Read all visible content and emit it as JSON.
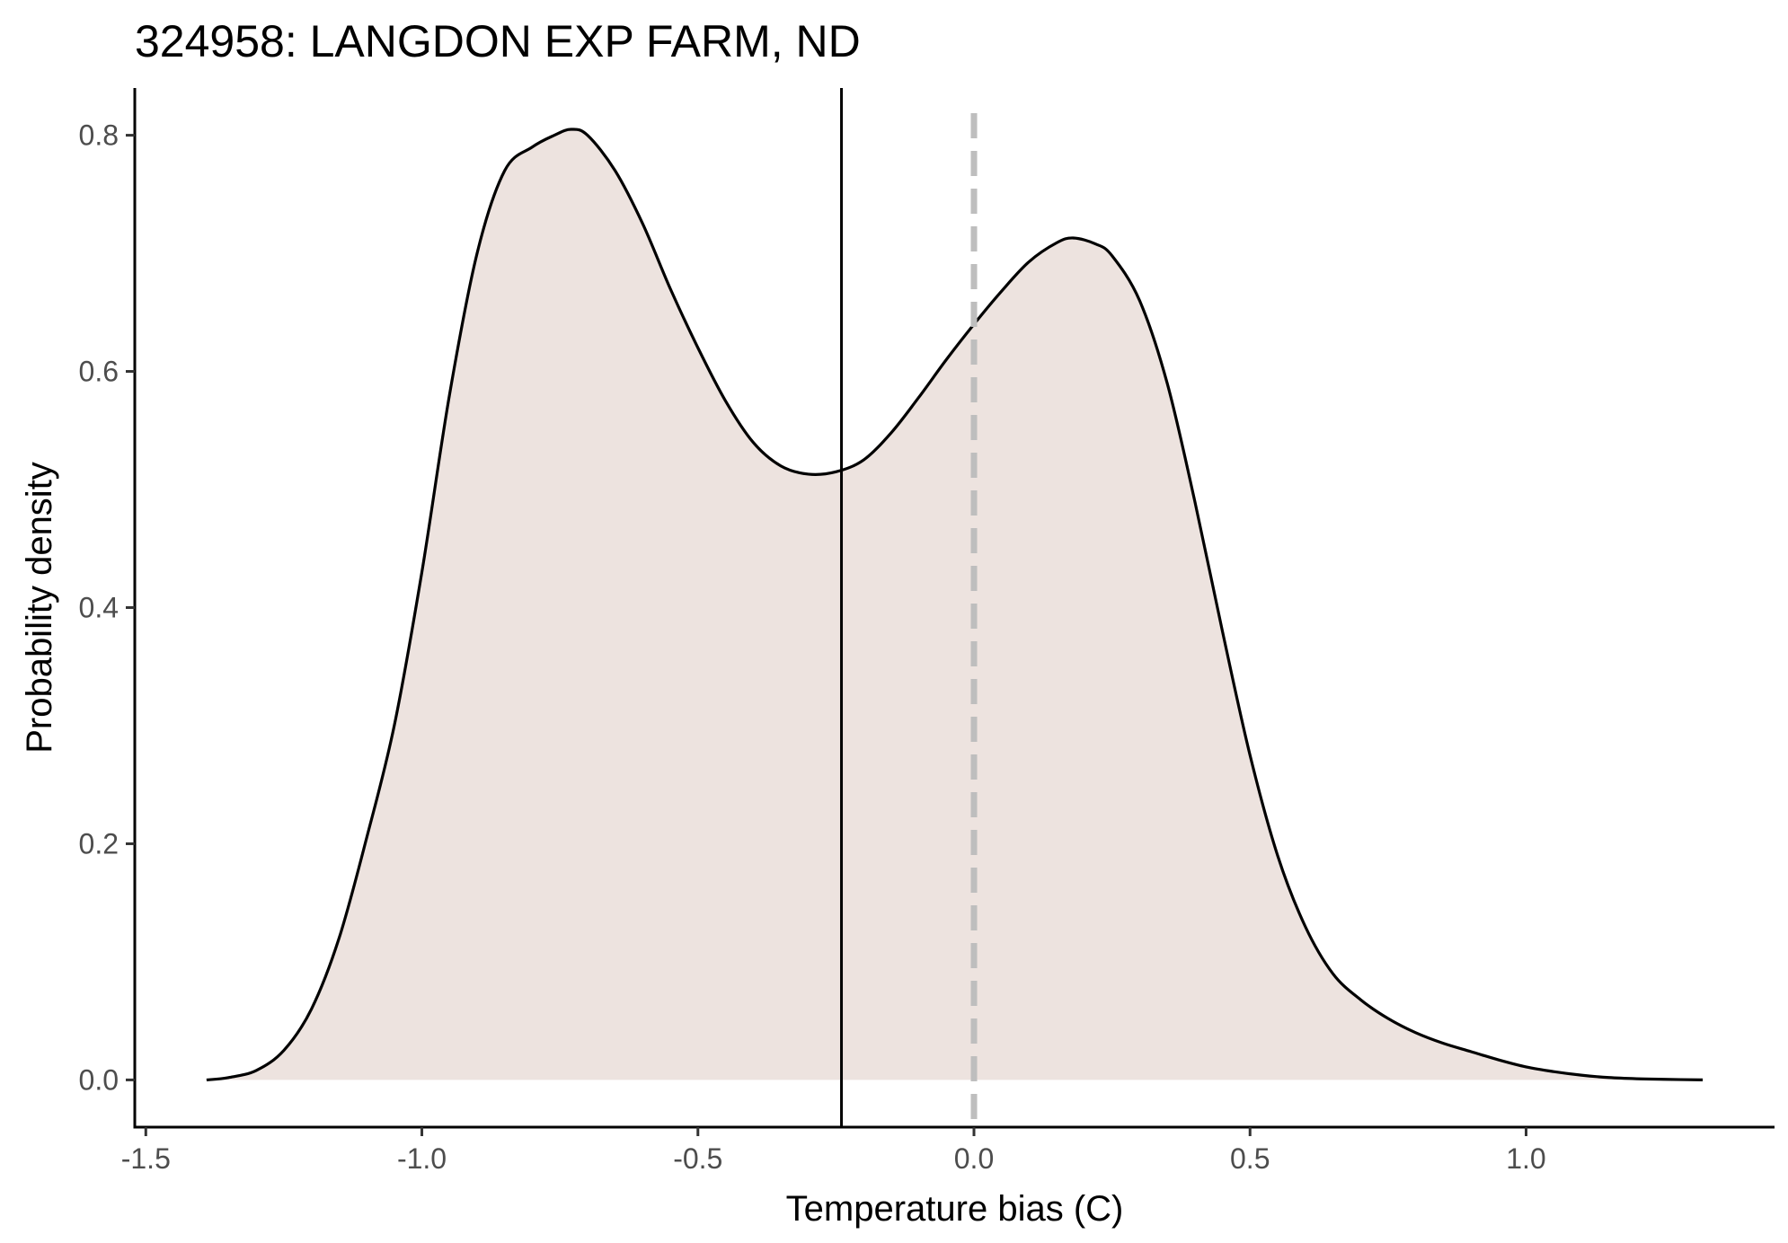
{
  "chart_data": {
    "type": "area",
    "title": "324958: LANGDON EXP FARM, ND",
    "xlabel": "Temperature bias (C)",
    "ylabel": "Probability density",
    "xlim": [
      -1.52,
      1.45
    ],
    "ylim": [
      -0.04,
      0.84
    ],
    "x_ticks": [
      -1.5,
      -1.0,
      -0.5,
      0.0,
      0.5,
      1.0
    ],
    "x_tick_labels": [
      "-1.5",
      "-1.0",
      "-0.5",
      "0.0",
      "0.5",
      "1.0"
    ],
    "y_ticks": [
      0.0,
      0.2,
      0.4,
      0.6,
      0.8
    ],
    "y_tick_labels": [
      "0.0",
      "0.2",
      "0.4",
      "0.6",
      "0.8"
    ],
    "grid": false,
    "fill_color": "#ede3df",
    "line_color": "#000000",
    "reference_lines": [
      {
        "name": "mean",
        "x": -0.24,
        "style": "solid",
        "color": "#000000"
      },
      {
        "name": "zero",
        "x": 0.0,
        "style": "dashed",
        "color": "#bebebe"
      }
    ],
    "series": [
      {
        "x": [
          -1.39,
          -1.35,
          -1.3,
          -1.25,
          -1.2,
          -1.15,
          -1.1,
          -1.05,
          -1.0,
          -0.95,
          -0.9,
          -0.85,
          -0.8,
          -0.76,
          -0.73,
          -0.7,
          -0.65,
          -0.6,
          -0.55,
          -0.5,
          -0.45,
          -0.4,
          -0.35,
          -0.3,
          -0.25,
          -0.2,
          -0.15,
          -0.1,
          -0.05,
          0.0,
          0.05,
          0.1,
          0.15,
          0.18,
          0.22,
          0.25,
          0.3,
          0.35,
          0.4,
          0.45,
          0.5,
          0.55,
          0.6,
          0.65,
          0.7,
          0.75,
          0.8,
          0.85,
          0.9,
          0.95,
          1.0,
          1.05,
          1.1,
          1.15,
          1.2,
          1.25,
          1.32
        ],
        "y": [
          0.0,
          0.002,
          0.008,
          0.025,
          0.06,
          0.12,
          0.205,
          0.3,
          0.43,
          0.58,
          0.7,
          0.77,
          0.79,
          0.8,
          0.805,
          0.8,
          0.77,
          0.725,
          0.67,
          0.62,
          0.575,
          0.54,
          0.52,
          0.513,
          0.515,
          0.525,
          0.548,
          0.578,
          0.61,
          0.64,
          0.668,
          0.693,
          0.709,
          0.713,
          0.708,
          0.698,
          0.66,
          0.59,
          0.49,
          0.38,
          0.275,
          0.19,
          0.13,
          0.09,
          0.068,
          0.052,
          0.04,
          0.031,
          0.024,
          0.017,
          0.011,
          0.007,
          0.004,
          0.002,
          0.001,
          0.0005,
          0.0
        ]
      }
    ]
  }
}
